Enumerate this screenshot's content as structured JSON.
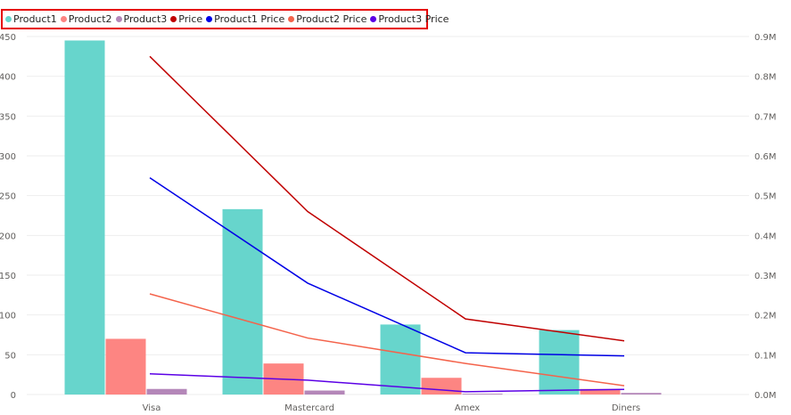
{
  "legend": [
    {
      "name": "Product1",
      "color": "#67d5cc"
    },
    {
      "name": "Product2",
      "color": "#fd8582"
    },
    {
      "name": "Product3",
      "color": "#b487b9"
    },
    {
      "name": "Price",
      "color": "#c00000"
    },
    {
      "name": "Product1 Price",
      "color": "#0000e6"
    },
    {
      "name": "Product2 Price",
      "color": "#f4634b"
    },
    {
      "name": "Product3 Price",
      "color": "#5b00e6"
    }
  ],
  "chart_data": {
    "type": "bar",
    "categories": [
      "Visa",
      "Mastercard",
      "Amex",
      "Diners"
    ],
    "series": [
      {
        "name": "Product1",
        "values": [
          445,
          233,
          88,
          81
        ],
        "color": "#67d5cc"
      },
      {
        "name": "Product2",
        "values": [
          70,
          39,
          21,
          7
        ],
        "color": "#fd8582"
      },
      {
        "name": "Product3",
        "values": [
          7,
          5,
          1,
          2
        ],
        "color": "#b487b9"
      }
    ],
    "line_series": [
      {
        "name": "Price",
        "values": [
          850000,
          460000,
          190000,
          135000
        ],
        "color": "#c00000"
      },
      {
        "name": "Product1 Price",
        "values": [
          545000,
          280000,
          105000,
          97000
        ],
        "color": "#0000e6"
      },
      {
        "name": "Product2 Price",
        "values": [
          253000,
          142000,
          78000,
          22000
        ],
        "color": "#f4634b"
      },
      {
        "name": "Product3 Price",
        "values": [
          52000,
          36000,
          7000,
          13000
        ],
        "color": "#5b00e6"
      }
    ],
    "y_left": {
      "min": 0,
      "max": 450,
      "ticks": [
        "0",
        "50",
        "100",
        "150",
        "200",
        "250",
        "300",
        "350",
        "400",
        "450"
      ]
    },
    "y_right": {
      "min": 0,
      "max": 900000,
      "ticks": [
        "0.0M",
        "0.1M",
        "0.2M",
        "0.3M",
        "0.4M",
        "0.5M",
        "0.6M",
        "0.7M",
        "0.8M",
        "0.9M"
      ]
    },
    "grid": true,
    "legend_position": "top-left"
  }
}
